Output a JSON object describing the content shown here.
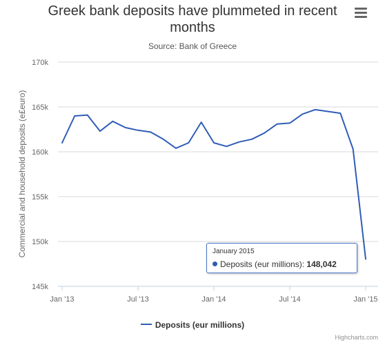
{
  "title": "Greek bank deposits have plummeted in recent months",
  "subtitle": "Source: Bank of Greece",
  "menu_icon": "hamburger-menu-icon",
  "tooltip": {
    "date": "January 2015",
    "series": "Deposits (eur millions):",
    "value": "148,042"
  },
  "credits": "Highcharts.com",
  "chart_data": {
    "type": "line",
    "title": "Greek bank deposits have plummeted in recent months",
    "subtitle": "Source: Bank of Greece",
    "ylabel": "Commercial and household deposits (e£euro)",
    "xlabel": "",
    "ylim": [
      145000,
      170000
    ],
    "yticks": [
      145000,
      150000,
      155000,
      160000,
      165000,
      170000
    ],
    "ytick_labels": [
      "145k",
      "150k",
      "155k",
      "160k",
      "165k",
      "170k"
    ],
    "xticks": [
      "Jan '13",
      "Jul '13",
      "Jan '14",
      "Jul '14",
      "Jan '15"
    ],
    "grid": true,
    "legend": "bottom",
    "color": "#2f5cb6",
    "series": [
      {
        "name": "Deposits (eur millions)",
        "x": [
          "2013-01",
          "2013-02",
          "2013-03",
          "2013-04",
          "2013-05",
          "2013-06",
          "2013-07",
          "2013-08",
          "2013-09",
          "2013-10",
          "2013-11",
          "2013-12",
          "2014-01",
          "2014-02",
          "2014-03",
          "2014-04",
          "2014-05",
          "2014-06",
          "2014-07",
          "2014-08",
          "2014-09",
          "2014-10",
          "2014-11",
          "2014-12",
          "2015-01"
        ],
        "values": [
          161000,
          164000,
          164100,
          162300,
          163400,
          162700,
          162400,
          162200,
          161400,
          160400,
          161000,
          163300,
          161000,
          160600,
          161100,
          161400,
          162100,
          163100,
          163200,
          164200,
          164700,
          164500,
          164300,
          160300,
          148042
        ]
      }
    ]
  }
}
